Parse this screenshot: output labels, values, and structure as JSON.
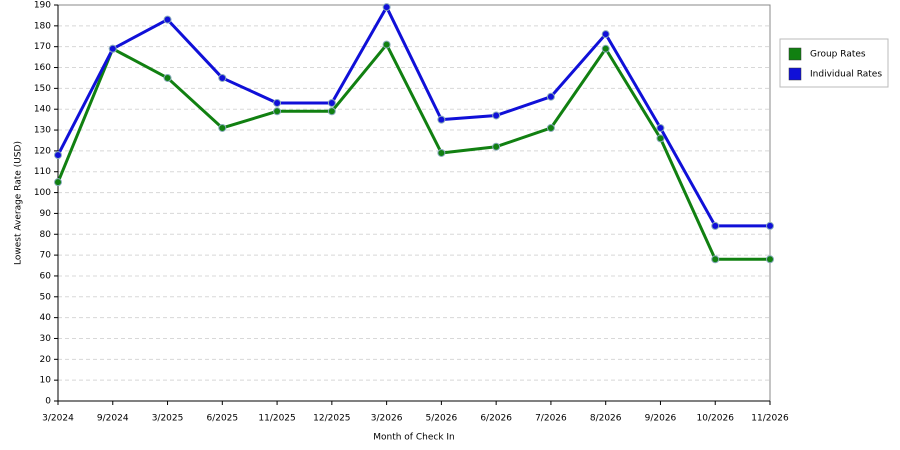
{
  "chart_data": {
    "type": "line",
    "x_label": "Month of Check In",
    "y_label": "Lowest Average Rate (USD)",
    "categories": [
      "3/2024",
      "9/2024",
      "3/2025",
      "6/2025",
      "11/2025",
      "12/2025",
      "3/2026",
      "5/2026",
      "6/2026",
      "7/2026",
      "8/2026",
      "9/2026",
      "10/2026",
      "11/2026"
    ],
    "series": [
      {
        "name": "Group Rates",
        "color": "#118011",
        "values": [
          105,
          169,
          155,
          131,
          139,
          139,
          171,
          119,
          122,
          131,
          169,
          126,
          68,
          68
        ]
      },
      {
        "name": "Individual Rates",
        "color": "#1010d8",
        "values": [
          118,
          169,
          183,
          155,
          143,
          143,
          189,
          135,
          137,
          146,
          176,
          131,
          84,
          84
        ]
      }
    ],
    "ylim": [
      0,
      190
    ],
    "yticks": [
      0,
      10,
      20,
      30,
      40,
      50,
      60,
      70,
      80,
      90,
      100,
      110,
      120,
      130,
      140,
      150,
      160,
      170,
      180,
      190
    ],
    "grid": true,
    "legend": "right"
  }
}
